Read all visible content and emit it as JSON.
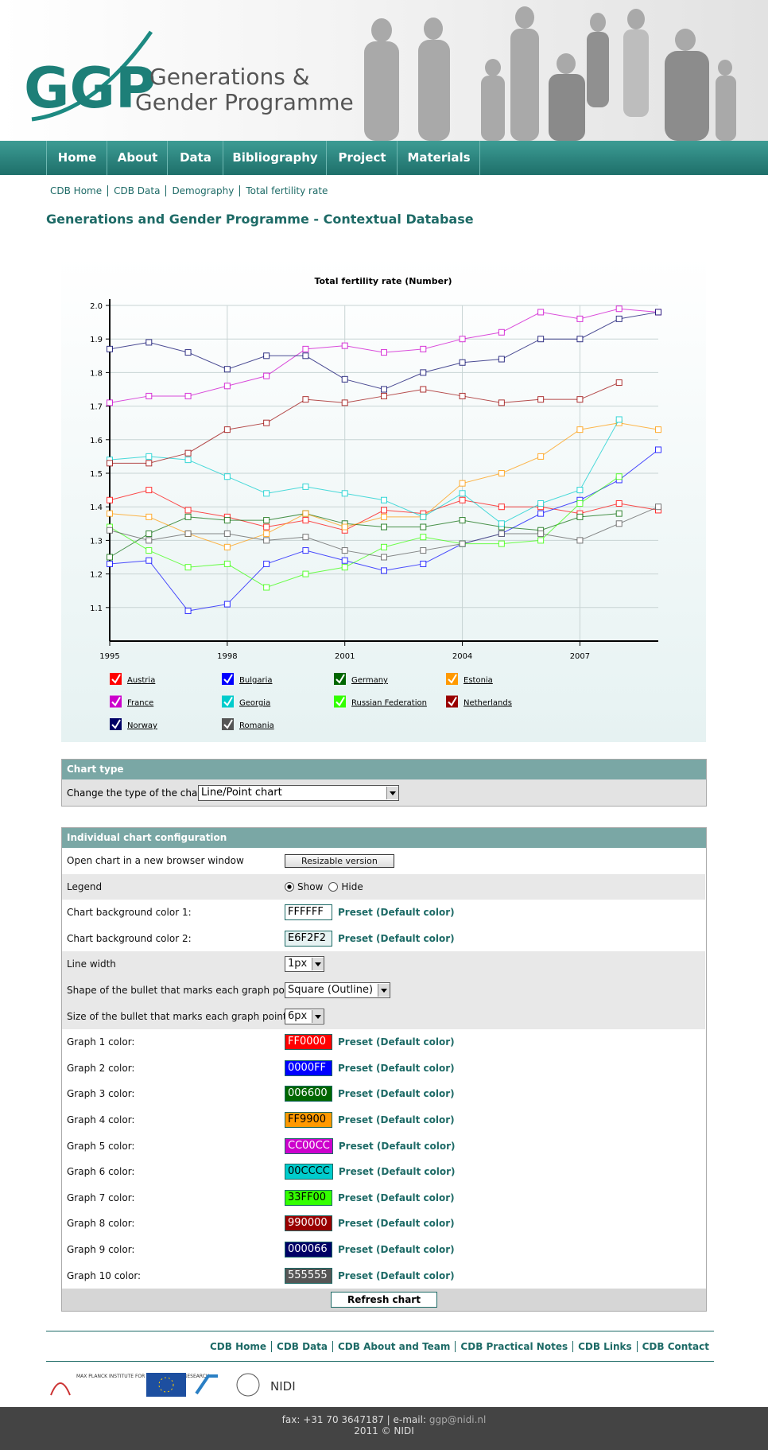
{
  "header": {
    "logo": "GGP",
    "name_line1": "Generations &",
    "name_line2": "Gender Programme"
  },
  "nav": [
    "Home",
    "About",
    "Data",
    "Bibliography",
    "Project",
    "Materials"
  ],
  "breadcrumbs": [
    "CDB Home",
    "CDB Data",
    "Demography",
    "Total fertility rate"
  ],
  "page_title": "Generations and Gender Programme - Contextual Database",
  "chart_data": {
    "type": "line",
    "title": "Total fertility rate (Number)",
    "x": [
      1995,
      1996,
      1997,
      1998,
      1999,
      2000,
      2001,
      2002,
      2003,
      2004,
      2005,
      2006,
      2007,
      2008,
      2009
    ],
    "xlim": [
      1995,
      2009
    ],
    "xticks": [
      1995,
      1998,
      2001,
      2004,
      2007
    ],
    "ylim": [
      1.0,
      2.0
    ],
    "yticks": [
      1.1,
      1.2,
      1.3,
      1.4,
      1.5,
      1.6,
      1.7,
      1.8,
      1.9,
      {
        "value": 2.0,
        "label": "2.0"
      }
    ],
    "grid": true,
    "legend": "bottom",
    "series": [
      {
        "name": "Austria",
        "color": "#FF0000",
        "values": [
          1.42,
          1.45,
          1.39,
          1.37,
          1.34,
          1.36,
          1.33,
          1.39,
          1.38,
          1.42,
          1.4,
          1.4,
          1.38,
          1.41,
          1.39
        ]
      },
      {
        "name": "Bulgaria",
        "color": "#0000FF",
        "values": [
          1.23,
          1.24,
          1.09,
          1.11,
          1.23,
          1.27,
          1.24,
          1.21,
          1.23,
          1.29,
          1.32,
          1.38,
          1.42,
          1.48,
          1.57
        ]
      },
      {
        "name": "Germany",
        "color": "#006600",
        "values": [
          1.25,
          1.32,
          1.37,
          1.36,
          1.36,
          1.38,
          1.35,
          1.34,
          1.34,
          1.36,
          1.34,
          1.33,
          1.37,
          1.38,
          null
        ]
      },
      {
        "name": "Estonia",
        "color": "#FF9900",
        "values": [
          1.38,
          1.37,
          1.32,
          1.28,
          1.32,
          1.38,
          1.34,
          1.37,
          1.37,
          1.47,
          1.5,
          1.55,
          1.63,
          1.65,
          1.63
        ]
      },
      {
        "name": "France",
        "color": "#CC00CC",
        "values": [
          1.71,
          1.73,
          1.73,
          1.76,
          1.79,
          1.87,
          1.88,
          1.86,
          1.87,
          1.9,
          1.92,
          1.98,
          1.96,
          1.99,
          1.98
        ]
      },
      {
        "name": "Georgia",
        "color": "#00CCCC",
        "values": [
          1.54,
          1.55,
          1.54,
          1.49,
          1.44,
          1.46,
          1.44,
          1.42,
          1.37,
          1.44,
          1.35,
          1.41,
          1.45,
          1.66,
          null
        ]
      },
      {
        "name": "Russian Federation",
        "color": "#33FF00",
        "values": [
          1.34,
          1.27,
          1.22,
          1.23,
          1.16,
          1.2,
          1.22,
          1.28,
          1.31,
          1.29,
          1.29,
          1.3,
          1.41,
          1.49,
          null
        ]
      },
      {
        "name": "Netherlands",
        "color": "#990000",
        "values": [
          1.53,
          1.53,
          1.56,
          1.63,
          1.65,
          1.72,
          1.71,
          1.73,
          1.75,
          1.73,
          1.71,
          1.72,
          1.72,
          1.77,
          null
        ]
      },
      {
        "name": "Norway",
        "color": "#000066",
        "values": [
          1.87,
          1.89,
          1.86,
          1.81,
          1.85,
          1.85,
          1.78,
          1.75,
          1.8,
          1.83,
          1.84,
          1.9,
          1.9,
          1.96,
          1.98
        ]
      },
      {
        "name": "Romania",
        "color": "#555555",
        "values": [
          1.33,
          1.3,
          1.32,
          1.32,
          1.3,
          1.31,
          1.27,
          1.25,
          1.27,
          1.29,
          1.32,
          1.32,
          1.3,
          1.35,
          1.4
        ]
      }
    ]
  },
  "chart_type_panel": {
    "title": "Chart type",
    "label": "Change the type of the chart",
    "value": "Line/Point chart"
  },
  "config": {
    "title": "Individual chart configuration",
    "rows": [
      {
        "label": "Open chart in a new browser window",
        "button": "Resizable version"
      },
      {
        "label": "Legend",
        "options": [
          "Show",
          "Hide"
        ],
        "selected": 0
      },
      {
        "label": "Chart background color 1:",
        "color": "FFFFFF",
        "preset": "Preset (Default color)"
      },
      {
        "label": "Chart background color 2:",
        "color": "E6F2F2",
        "preset": "Preset (Default color)"
      },
      {
        "label": "Line width",
        "select": "1px"
      },
      {
        "label": "Shape of the bullet that marks each graph point:",
        "select": "Square (Outline)"
      },
      {
        "label": "Size of the bullet that marks each graph point:",
        "select": "6px"
      },
      {
        "label": "Graph 1 color:",
        "color": "FF0000",
        "preset": "Preset (Default color)"
      },
      {
        "label": "Graph 2 color:",
        "color": "0000FF",
        "preset": "Preset (Default color)"
      },
      {
        "label": "Graph 3 color:",
        "color": "006600",
        "preset": "Preset (Default color)"
      },
      {
        "label": "Graph 4 color:",
        "color": "FF9900",
        "preset": "Preset (Default color)"
      },
      {
        "label": "Graph 5 color:",
        "color": "CC00CC",
        "preset": "Preset (Default color)"
      },
      {
        "label": "Graph 6 color:",
        "color": "00CCCC",
        "preset": "Preset (Default color)"
      },
      {
        "label": "Graph 7 color:",
        "color": "33FF00",
        "preset": "Preset (Default color)"
      },
      {
        "label": "Graph 8 color:",
        "color": "990000",
        "preset": "Preset (Default color)"
      },
      {
        "label": "Graph 9 color:",
        "color": "000066",
        "preset": "Preset (Default color)"
      },
      {
        "label": "Graph 10 color:",
        "color": "555555",
        "preset": "Preset (Default color)"
      }
    ],
    "refresh": "Refresh chart"
  },
  "footer": {
    "links": [
      "CDB Home",
      "CDB Data",
      "CDB About and Team",
      "CDB Practical Notes",
      "CDB Links",
      "CDB Contact"
    ],
    "logos": {
      "mpi": "MAX PLANCK INSTITUTE FOR DEMOGRAPHIC RESEARCH",
      "nidi": "NIDI"
    },
    "contact": "fax: +31 70 3647187 | e-mail:",
    "email": "ggp@nidi.nl",
    "copyright": "2011 © NIDI"
  }
}
